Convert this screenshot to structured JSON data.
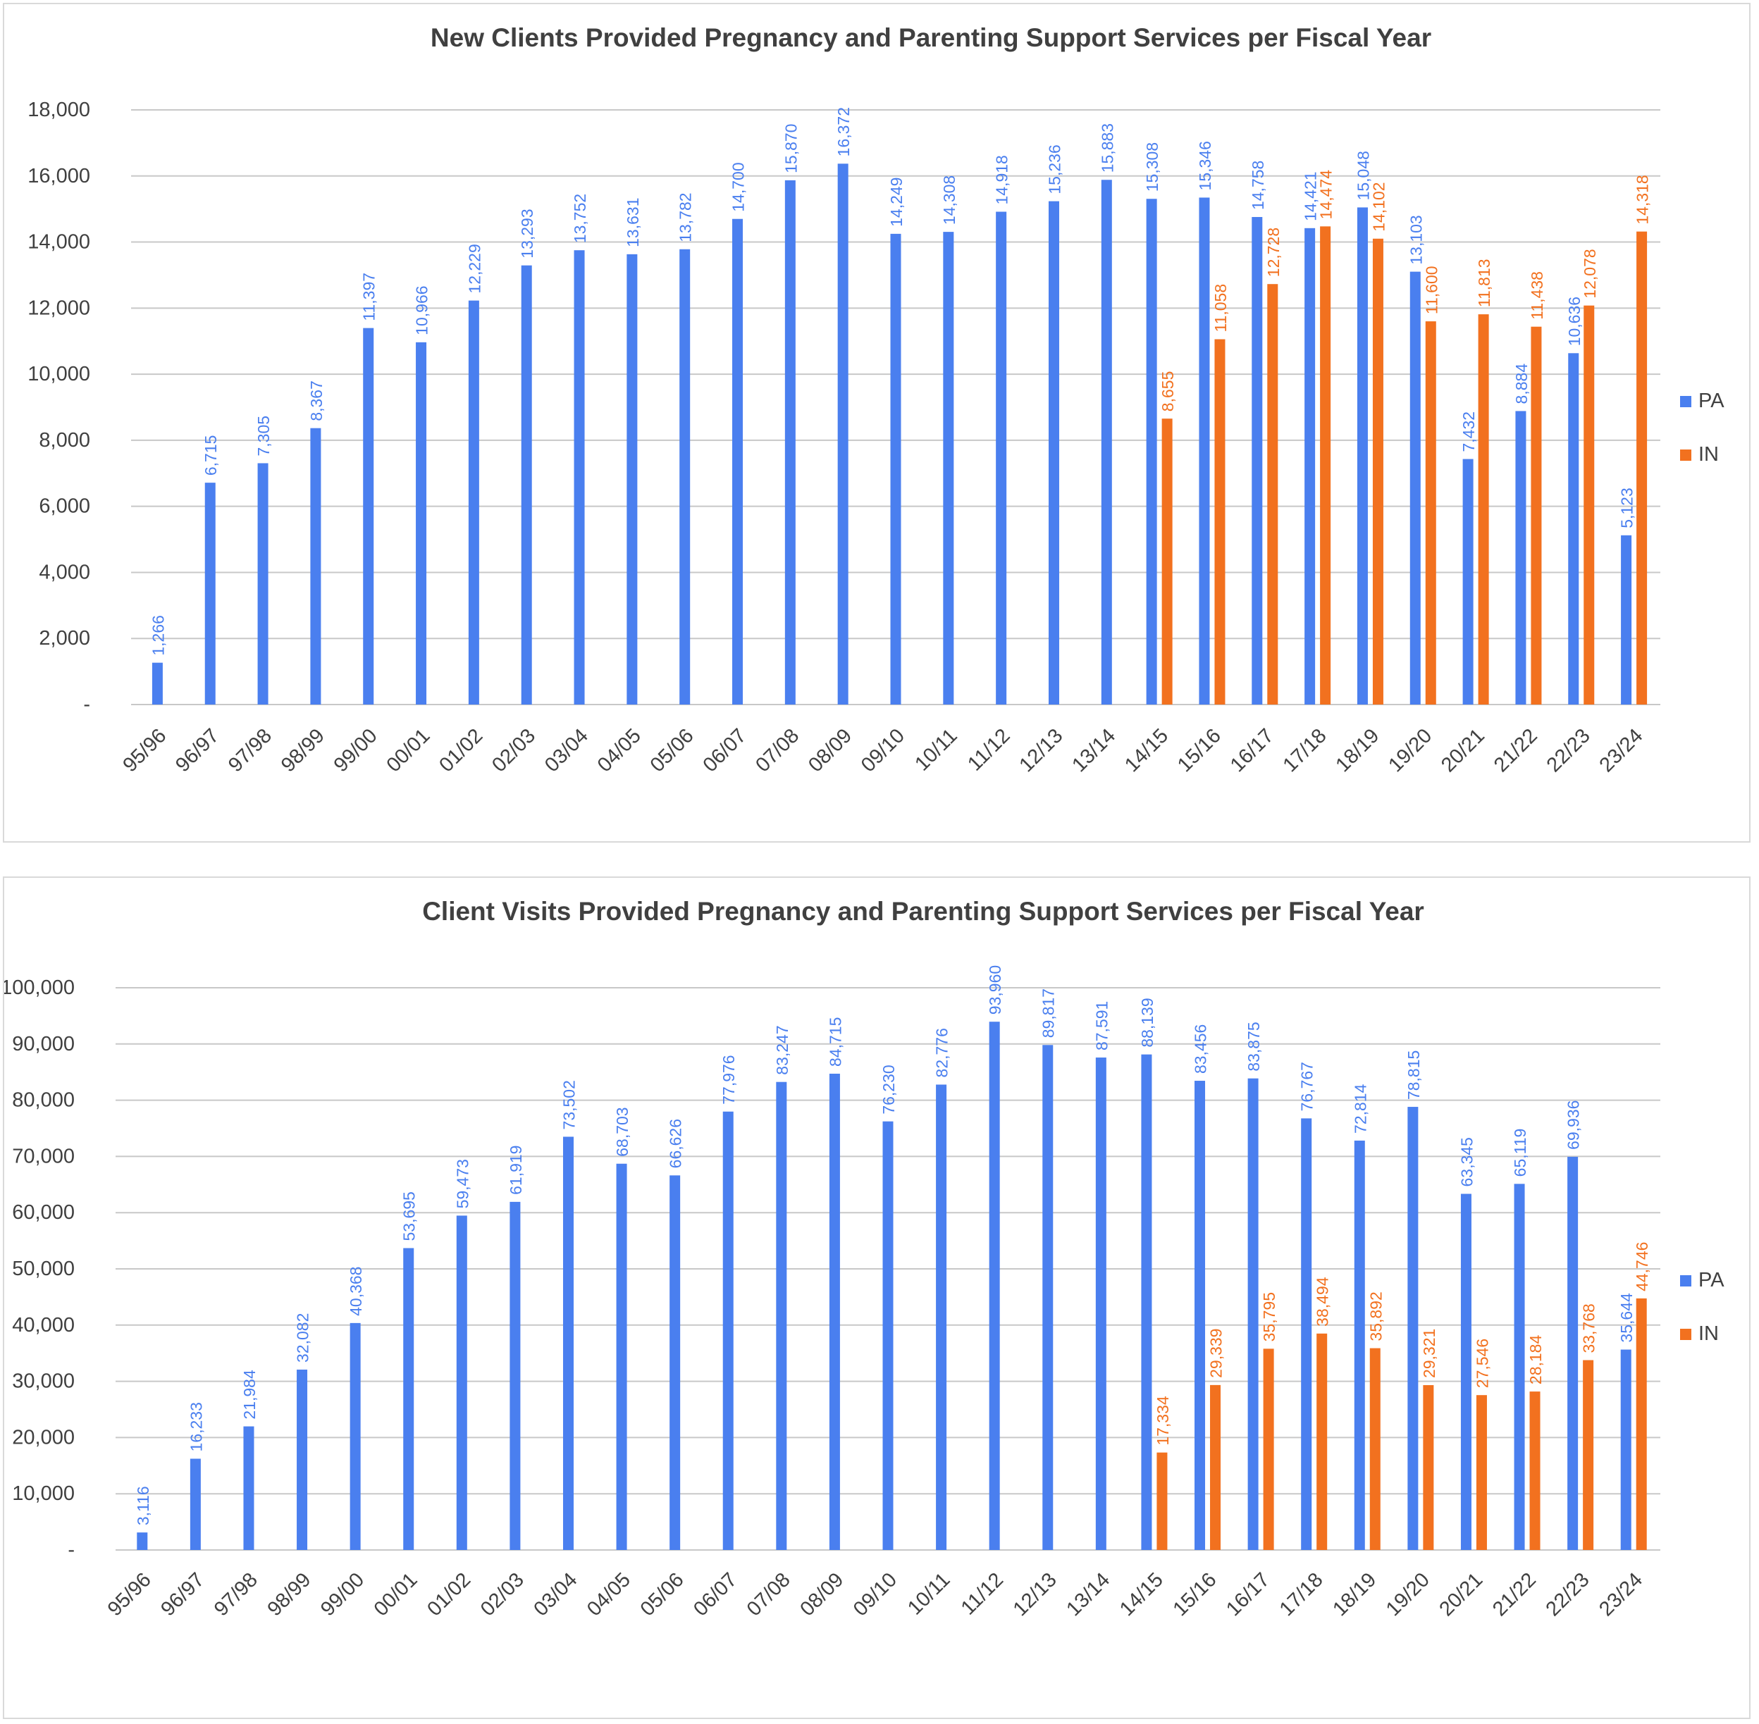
{
  "colors": {
    "PA": "#4a7fef",
    "IN": "#f2711f",
    "grid": "#c8c8c8",
    "axis_text": "#404040",
    "title": "#404040"
  },
  "chart_data": [
    {
      "type": "bar",
      "title": "New Clients Provided Pregnancy and Parenting Support Services per Fiscal Year",
      "xlabel": "",
      "ylabel": "",
      "ylim": [
        0,
        18000
      ],
      "yticks": [
        0,
        2000,
        4000,
        6000,
        8000,
        10000,
        12000,
        14000,
        16000,
        18000
      ],
      "ytick_labels": [
        "-",
        "2,000",
        "4,000",
        "6,000",
        "8,000",
        "10,000",
        "12,000",
        "14,000",
        "16,000",
        "18,000"
      ],
      "grid": true,
      "legend_position": "right",
      "categories": [
        "95/96",
        "96/97",
        "97/98",
        "98/99",
        "99/00",
        "00/01",
        "01/02",
        "02/03",
        "03/04",
        "04/05",
        "05/06",
        "06/07",
        "07/08",
        "08/09",
        "09/10",
        "10/11",
        "11/12",
        "12/13",
        "13/14",
        "14/15",
        "15/16",
        "16/17",
        "17/18",
        "18/19",
        "19/20",
        "20/21",
        "21/22",
        "22/23",
        "23/24"
      ],
      "series": [
        {
          "name": "PA",
          "values": [
            1266,
            6715,
            7305,
            8367,
            11397,
            10966,
            12229,
            13293,
            13752,
            13631,
            13782,
            14700,
            15870,
            16372,
            14249,
            14308,
            14918,
            15236,
            15883,
            15308,
            15346,
            14758,
            14421,
            15048,
            13103,
            7432,
            8884,
            10636,
            5123
          ],
          "labels": [
            "1,266",
            "6,715",
            "7,305",
            "8,367",
            "11,397",
            "10,966",
            "12,229",
            "13,293",
            "13,752",
            "13,631",
            "13,782",
            "14,700",
            "15,870",
            "16,372",
            "14,249",
            "14,308",
            "14,918",
            "15,236",
            "15,883",
            "15,308",
            "15,346",
            "14,758",
            "14,421",
            "15,048",
            "13,103",
            "7,432",
            "8,884",
            "10,636",
            "5,123"
          ]
        },
        {
          "name": "IN",
          "values": [
            null,
            null,
            null,
            null,
            null,
            null,
            null,
            null,
            null,
            null,
            null,
            null,
            null,
            null,
            null,
            null,
            null,
            null,
            null,
            8655,
            11058,
            12728,
            14474,
            14102,
            11600,
            11813,
            11438,
            12078,
            14318
          ],
          "labels": [
            "",
            "",
            "",
            "",
            "",
            "",
            "",
            "",
            "",
            "",
            "",
            "",
            "",
            "",
            "",
            "",
            "",
            "",
            "",
            "8,655",
            "11,058",
            "12,728",
            "14,474",
            "14,102",
            "11,600",
            "11,813",
            "11,438",
            "12,078",
            "14,318"
          ]
        }
      ]
    },
    {
      "type": "bar",
      "title": "Client Visits Provided Pregnancy and Parenting Support Services per Fiscal Year",
      "xlabel": "",
      "ylabel": "",
      "ylim": [
        0,
        100000
      ],
      "yticks": [
        0,
        10000,
        20000,
        30000,
        40000,
        50000,
        60000,
        70000,
        80000,
        90000,
        100000
      ],
      "ytick_labels": [
        "-",
        "10,000",
        "20,000",
        "30,000",
        "40,000",
        "50,000",
        "60,000",
        "70,000",
        "80,000",
        "90,000",
        "100,000"
      ],
      "grid": true,
      "legend_position": "right",
      "categories": [
        "95/96",
        "96/97",
        "97/98",
        "98/99",
        "99/00",
        "00/01",
        "01/02",
        "02/03",
        "03/04",
        "04/05",
        "05/06",
        "06/07",
        "07/08",
        "08/09",
        "09/10",
        "10/11",
        "11/12",
        "12/13",
        "13/14",
        "14/15",
        "15/16",
        "16/17",
        "17/18",
        "18/19",
        "19/20",
        "20/21",
        "21/22",
        "22/23",
        "23/24"
      ],
      "series": [
        {
          "name": "PA",
          "values": [
            3116,
            16233,
            21984,
            32082,
            40368,
            53695,
            59473,
            61919,
            73502,
            68703,
            66626,
            77976,
            83247,
            84715,
            76230,
            82776,
            93960,
            89817,
            87591,
            88139,
            83456,
            83875,
            76767,
            72814,
            78815,
            63345,
            65119,
            69936,
            35644
          ],
          "labels": [
            "3,116",
            "16,233",
            "21,984",
            "32,082",
            "40,368",
            "53,695",
            "59,473",
            "61,919",
            "73,502",
            "68,703",
            "66,626",
            "77,976",
            "83,247",
            "84,715",
            "76,230",
            "82,776",
            "93,960",
            "89,817",
            "87,591",
            "88,139",
            "83,456",
            "83,875",
            "76,767",
            "72,814",
            "78,815",
            "63,345",
            "65,119",
            "69,936",
            "35,644"
          ]
        },
        {
          "name": "IN",
          "values": [
            null,
            null,
            null,
            null,
            null,
            null,
            null,
            null,
            null,
            null,
            null,
            null,
            null,
            null,
            null,
            null,
            null,
            null,
            null,
            17334,
            29339,
            35795,
            38494,
            35892,
            29321,
            27546,
            28184,
            33768,
            44746
          ],
          "labels": [
            "",
            "",
            "",
            "",
            "",
            "",
            "",
            "",
            "",
            "",
            "",
            "",
            "",
            "",
            "",
            "",
            "",
            "",
            "",
            "17,334",
            "29,339",
            "35,795",
            "38,494",
            "35,892",
            "29,321",
            "27,546",
            "28,184",
            "33,768",
            "44,746"
          ]
        }
      ]
    }
  ]
}
